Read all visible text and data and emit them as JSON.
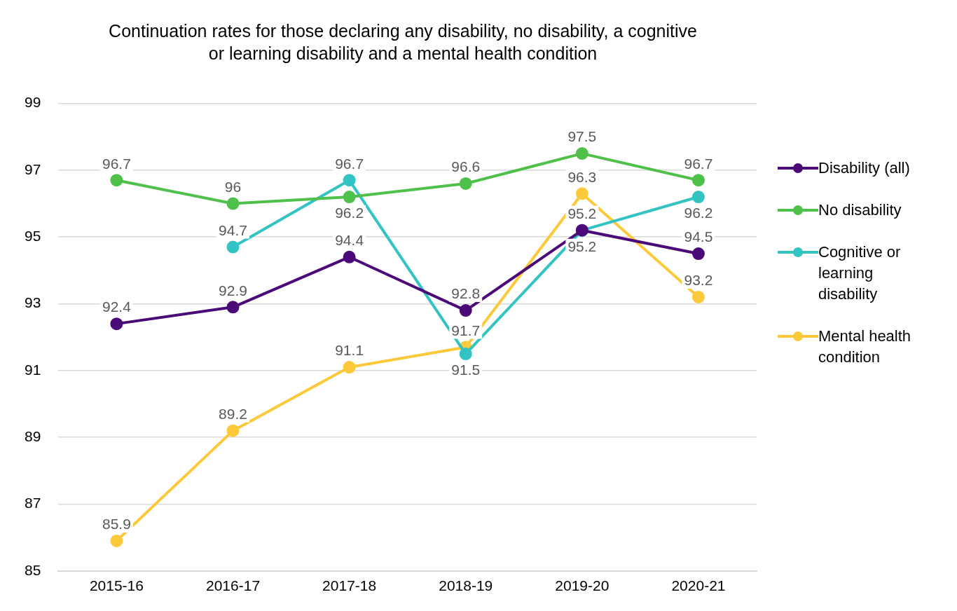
{
  "chart_data": {
    "type": "line",
    "title": "Continuation rates for those declaring any disability, no disability, a cognitive or learning disability and a mental health condition",
    "categories": [
      "2015-16",
      "2016-17",
      "2017-18",
      "2018-19",
      "2019-20",
      "2020-21"
    ],
    "series": [
      {
        "name": "Disability (all)",
        "color": "#4b0a78",
        "values": [
          92.4,
          92.9,
          94.4,
          92.8,
          95.2,
          94.5
        ]
      },
      {
        "name": "No disability",
        "color": "#4fc04a",
        "values": [
          96.7,
          96,
          96.2,
          96.6,
          97.5,
          96.7
        ]
      },
      {
        "name": "Cognitive or learning disability",
        "color": "#33c3c3",
        "values": [
          null,
          94.7,
          96.7,
          91.5,
          95.2,
          96.2
        ]
      },
      {
        "name": "Mental health condition",
        "color": "#fbc93a",
        "values": [
          85.9,
          89.2,
          91.1,
          91.7,
          96.3,
          93.2
        ]
      }
    ],
    "ylim": [
      85,
      99
    ],
    "yticks": [
      85,
      87,
      89,
      91,
      93,
      95,
      97,
      99
    ],
    "grid": "y",
    "legend": "right",
    "marker": "circle",
    "line_style": "solid",
    "data_labels": true
  }
}
